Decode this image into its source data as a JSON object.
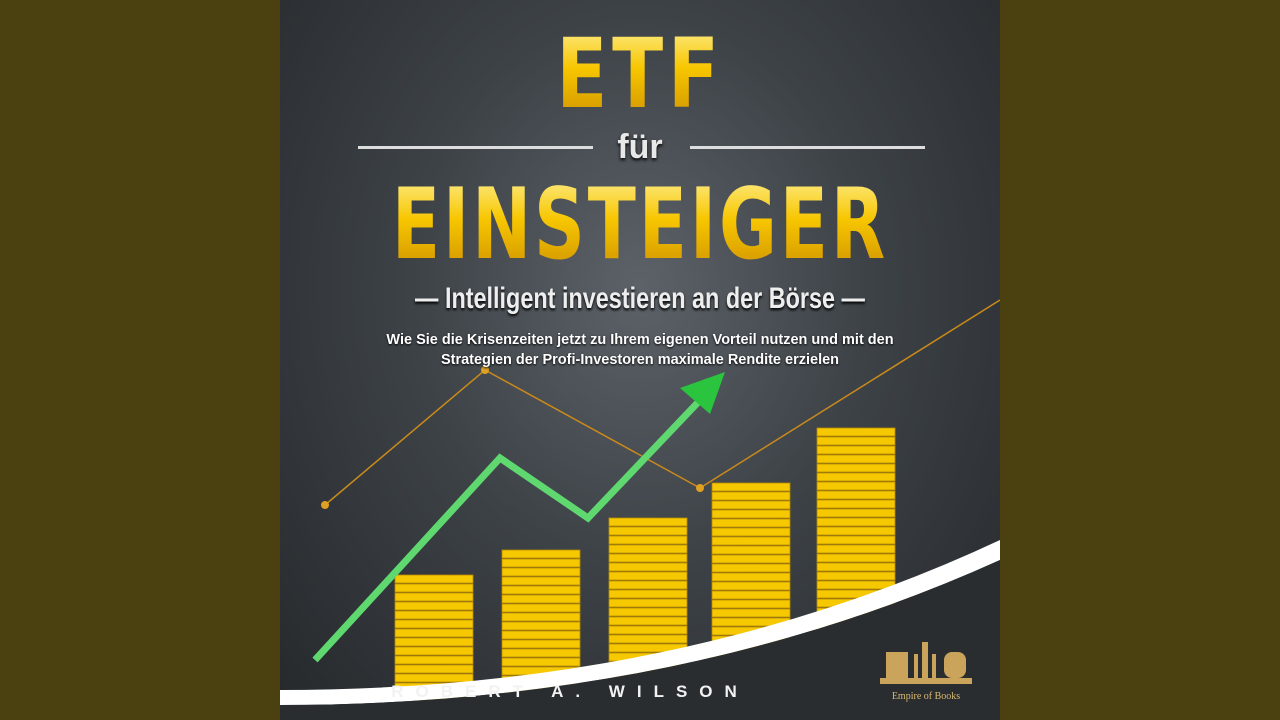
{
  "cover": {
    "title_line1": "ETF",
    "title_line2": "für",
    "title_line3": "EINSTEIGER",
    "subtitle": "— Intelligent investieren an der Börse —",
    "description": "Wie Sie die Krisenzeiten jetzt zu Ihrem eigenen Vorteil nutzen und mit den Strategien der Profi-Investoren maximale Rendite erzielen",
    "author": "ROBERT A. WILSON",
    "publisher_logo": "Empire of Books",
    "colors": {
      "gold": "#f7c600",
      "arrow": "#5fd86f",
      "frame": "#4b400f",
      "background": "#3d4247"
    }
  }
}
